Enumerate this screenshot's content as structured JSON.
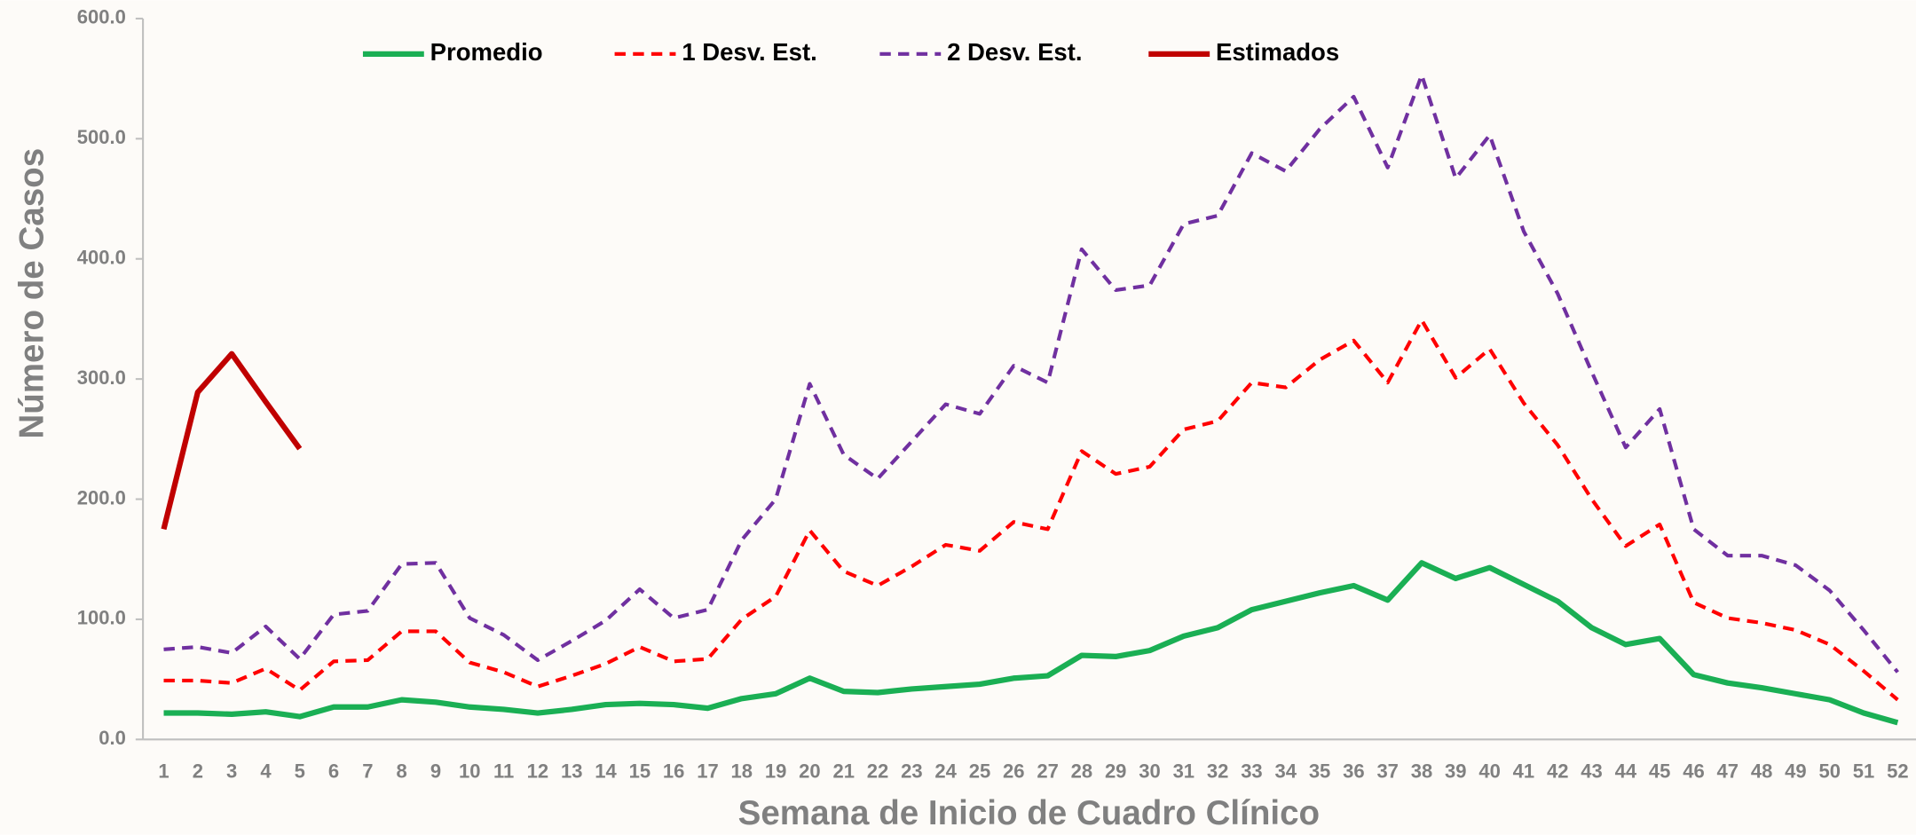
{
  "chart_data": {
    "type": "line",
    "xlabel": "Semana de Inicio de Cuadro Clínico",
    "ylabel": "Número de Casos",
    "categories": [
      "1",
      "2",
      "3",
      "4",
      "5",
      "6",
      "7",
      "8",
      "9",
      "10",
      "11",
      "12",
      "13",
      "14",
      "15",
      "16",
      "17",
      "18",
      "19",
      "20",
      "21",
      "22",
      "23",
      "24",
      "25",
      "26",
      "27",
      "28",
      "29",
      "30",
      "31",
      "32",
      "33",
      "34",
      "35",
      "36",
      "37",
      "38",
      "39",
      "40",
      "41",
      "42",
      "43",
      "44",
      "45",
      "46",
      "47",
      "48",
      "49",
      "50",
      "51",
      "52"
    ],
    "ylim": [
      0,
      600
    ],
    "yticks": [
      {
        "value": 0,
        "label": "0.0"
      },
      {
        "value": 100,
        "label": "100.0"
      },
      {
        "value": 200,
        "label": "200.0"
      },
      {
        "value": 300,
        "label": "300.0"
      },
      {
        "value": 400,
        "label": "400.0"
      },
      {
        "value": 500,
        "label": "500.0"
      },
      {
        "value": 600,
        "label": "600.0"
      }
    ],
    "legend": "top",
    "series": [
      {
        "name": "Promedio",
        "color": "#1aaf54",
        "dashed": false,
        "values": [
          22,
          22,
          21,
          23,
          19,
          27,
          27,
          33,
          31,
          27,
          25,
          22,
          25,
          29,
          30,
          29,
          26,
          34,
          38,
          51,
          40,
          39,
          42,
          44,
          46,
          51,
          53,
          70,
          69,
          74,
          86,
          93,
          108,
          115,
          122,
          128,
          116,
          147,
          134,
          143,
          129,
          115,
          93,
          79,
          84,
          54,
          47,
          43,
          38,
          33,
          22,
          14
        ]
      },
      {
        "name": "1 Desv. Est.",
        "color": "#ff0000",
        "dashed": true,
        "values": [
          49,
          49,
          47,
          59,
          41,
          65,
          66,
          90,
          90,
          64,
          56,
          44,
          53,
          63,
          77,
          65,
          67,
          100,
          119,
          174,
          140,
          128,
          144,
          162,
          157,
          181,
          175,
          240,
          221,
          227,
          258,
          265,
          297,
          293,
          316,
          332,
          297,
          349,
          301,
          325,
          280,
          245,
          200,
          161,
          179,
          114,
          101,
          97,
          91,
          79,
          57,
          33
        ]
      },
      {
        "name": "2 Desv. Est.",
        "color": "#7030a0",
        "dashed": true,
        "values": [
          75,
          77,
          72,
          94,
          67,
          104,
          107,
          146,
          147,
          101,
          87,
          66,
          82,
          99,
          125,
          101,
          108,
          166,
          200,
          296,
          237,
          217,
          248,
          279,
          271,
          311,
          297,
          408,
          374,
          378,
          429,
          436,
          488,
          473,
          508,
          535,
          476,
          553,
          467,
          503,
          423,
          371,
          306,
          243,
          275,
          175,
          153,
          153,
          145,
          124,
          91,
          56
        ]
      },
      {
        "name": "Estimados",
        "color": "#c00000",
        "dashed": false,
        "values": [
          175,
          289,
          321,
          281,
          242,
          null,
          null,
          null,
          null,
          null,
          null,
          null,
          null,
          null,
          null,
          null,
          null,
          null,
          null,
          null,
          null,
          null,
          null,
          null,
          null,
          null,
          null,
          null,
          null,
          null,
          null,
          null,
          null,
          null,
          null,
          null,
          null,
          null,
          null,
          null,
          null,
          null,
          null,
          null,
          null,
          null,
          null,
          null,
          null,
          null,
          null,
          null
        ]
      }
    ]
  }
}
